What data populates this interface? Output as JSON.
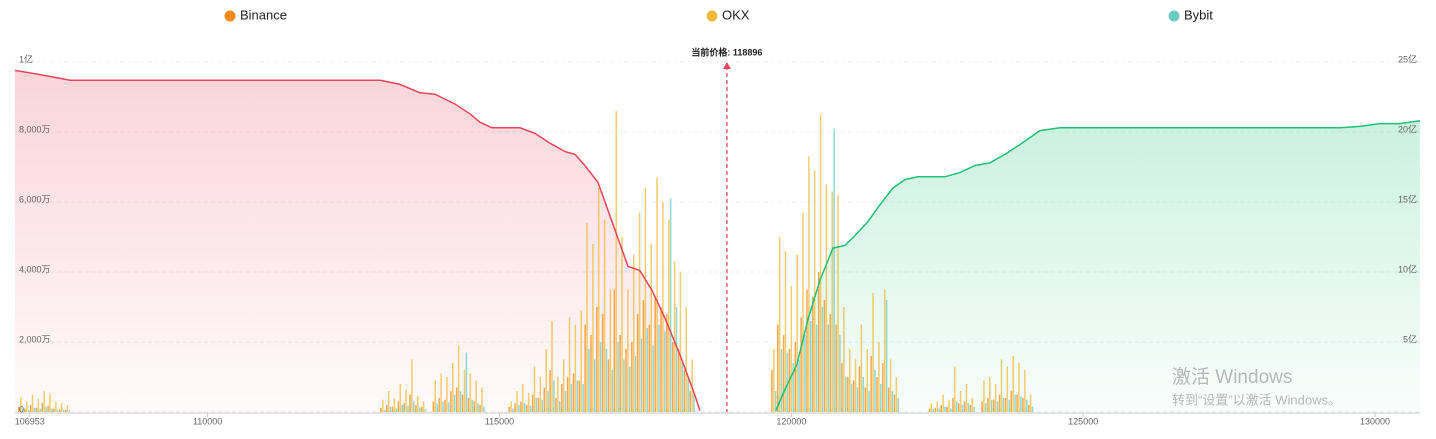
{
  "chart_data": {
    "type": "combo",
    "legend": "top",
    "grid": true,
    "xlim": [
      106700,
      130770
    ],
    "xticks": [
      106953,
      110000,
      115000,
      120000,
      125000,
      130000
    ],
    "ylim": [
      0,
      10000
    ],
    "yticks": [
      0,
      {
        "value": 2000,
        "label": "2,000万"
      },
      {
        "value": 4000,
        "label": "4,000万"
      },
      {
        "value": 6000,
        "label": "6,000万"
      },
      {
        "value": 8000,
        "label": "8,000万"
      },
      {
        "value": 10000,
        "label": "1亿"
      }
    ],
    "y2lim": [
      0,
      25
    ],
    "y2ticks": [
      {
        "value": 5,
        "label": "5亿"
      },
      {
        "value": 10,
        "label": "10亿"
      },
      {
        "value": 15,
        "label": "15亿"
      },
      {
        "value": 20,
        "label": "20亿"
      },
      {
        "value": 25,
        "label": "25亿"
      }
    ],
    "current_price": {
      "value": 118896,
      "label": "当前价格: 118896"
    },
    "x": [
      106800,
      106900,
      107000,
      107100,
      107200,
      107300,
      107400,
      107500,
      107600,
      113000,
      113100,
      113200,
      113300,
      113400,
      113500,
      113600,
      113700,
      113900,
      114000,
      114100,
      114200,
      114300,
      114400,
      114500,
      114600,
      114700,
      115200,
      115300,
      115400,
      115500,
      115600,
      115700,
      115800,
      115900,
      116000,
      116100,
      116200,
      116300,
      116400,
      116500,
      116600,
      116700,
      116800,
      116900,
      117000,
      117100,
      117200,
      117300,
      117400,
      117500,
      117600,
      117700,
      117800,
      117900,
      118000,
      118100,
      118200,
      118300,
      119700,
      119800,
      119900,
      120000,
      120100,
      120200,
      120300,
      120400,
      120500,
      120600,
      120700,
      120800,
      120900,
      121000,
      121100,
      121200,
      121300,
      121400,
      121500,
      121600,
      121700,
      121800,
      122400,
      122500,
      122600,
      122700,
      122800,
      122900,
      123000,
      123100,
      123300,
      123400,
      123500,
      123600,
      123700,
      123800,
      123900,
      124000,
      124100
    ],
    "series": [
      {
        "name": "Binance",
        "type": "bar",
        "color": "#f7890f",
        "values": [
          150,
          100,
          200,
          120,
          250,
          180,
          90,
          80,
          60,
          120,
          200,
          150,
          300,
          250,
          500,
          200,
          150,
          300,
          400,
          350,
          600,
          700,
          500,
          400,
          300,
          200,
          150,
          250,
          300,
          200,
          500,
          400,
          700,
          1200,
          400,
          800,
          1000,
          1100,
          900,
          2500,
          2200,
          3000,
          2800,
          1500,
          3500,
          2200,
          1800,
          2000,
          2800,
          3200,
          2500,
          3300,
          3000,
          2800,
          2000,
          1800,
          1200,
          600,
          1200,
          2500,
          2200,
          1800,
          2000,
          2700,
          3500,
          3300,
          4000,
          3200,
          2800,
          2500,
          1400,
          1000,
          900,
          1300,
          700,
          1600,
          1000,
          1400,
          700,
          500,
          100,
          120,
          200,
          150,
          400,
          250,
          300,
          200,
          300,
          400,
          350,
          500,
          400,
          600,
          500,
          400,
          200
        ]
      },
      {
        "name": "OKX",
        "type": "bar",
        "color": "#f0bb3a",
        "values": [
          420,
          300,
          500,
          380,
          600,
          520,
          300,
          260,
          200,
          350,
          600,
          400,
          800,
          650,
          1500,
          450,
          300,
          900,
          1100,
          1000,
          1400,
          1900,
          1200,
          1100,
          900,
          700,
          300,
          600,
          800,
          550,
          1300,
          1000,
          1800,
          2600,
          1000,
          1500,
          2700,
          2500,
          2900,
          5400,
          4800,
          6400,
          5500,
          3500,
          8600,
          5000,
          3500,
          4500,
          5700,
          6400,
          4800,
          6700,
          6000,
          5500,
          4300,
          4000,
          3000,
          1500,
          1800,
          5000,
          4600,
          3600,
          4500,
          5700,
          7300,
          6900,
          8500,
          6500,
          6300,
          6200,
          3000,
          1800,
          1500,
          2500,
          1800,
          3400,
          2000,
          3500,
          1500,
          1000,
          250,
          300,
          500,
          350,
          1300,
          600,
          800,
          400,
          900,
          1000,
          800,
          1500,
          1300,
          1600,
          1400,
          1200,
          500
        ]
      },
      {
        "name": "Bybit",
        "type": "bar",
        "color": "#6ccbc1",
        "values": [
          80,
          60,
          120,
          90,
          150,
          100,
          60,
          50,
          40,
          60,
          150,
          100,
          200,
          180,
          300,
          120,
          80,
          250,
          300,
          280,
          500,
          600,
          1700,
          350,
          250,
          150,
          100,
          200,
          250,
          180,
          400,
          350,
          600,
          900,
          300,
          600,
          800,
          900,
          800,
          1800,
          1500,
          2000,
          1800,
          1200,
          2000,
          1500,
          1300,
          1600,
          2100,
          2400,
          1900,
          2500,
          2300,
          6100,
          3000,
          1500,
          1000,
          500,
          600,
          1800,
          1700,
          1400,
          1500,
          2200,
          2600,
          2500,
          3000,
          2500,
          8100,
          2200,
          1000,
          800,
          700,
          1000,
          600,
          1200,
          800,
          3200,
          600,
          400,
          80,
          100,
          150,
          100,
          300,
          200,
          250,
          150,
          250,
          350,
          300,
          400,
          350,
          500,
          450,
          350,
          150
        ]
      },
      {
        "type": "area",
        "axis": "y2",
        "color": "#e84558",
        "x": [
          106700,
          107128,
          107385,
          107642,
          112952,
          113295,
          113466,
          113638,
          113895,
          114237,
          114494,
          114665,
          114871,
          115351,
          115608,
          115865,
          116122,
          116293,
          116464,
          116687,
          116927,
          117201,
          117406,
          117612,
          117835,
          118091,
          118348,
          118434
        ],
        "values": [
          24.4,
          24.1,
          23.9,
          23.7,
          23.7,
          23.4,
          23.1,
          22.8,
          22.7,
          22.0,
          21.3,
          20.7,
          20.3,
          20.3,
          19.9,
          19.2,
          18.6,
          18.4,
          17.6,
          16.4,
          13.6,
          10.4,
          10.1,
          8.7,
          6.7,
          4.1,
          1.2,
          0.1
        ]
      },
      {
        "type": "area",
        "axis": "y2",
        "color": "#1fbf75",
        "x": [
          119736,
          119890,
          120096,
          120284,
          120490,
          120712,
          120918,
          121089,
          121312,
          121483,
          121740,
          121946,
          122168,
          122631,
          122888,
          123145,
          123402,
          123659,
          123916,
          124258,
          124601,
          129397,
          129740,
          130082,
          130425,
          130768
        ],
        "values": [
          0.1,
          1.6,
          3.4,
          6.6,
          9.4,
          11.7,
          11.9,
          12.6,
          13.6,
          14.6,
          16.0,
          16.6,
          16.8,
          16.8,
          17.1,
          17.6,
          17.8,
          18.4,
          19.1,
          20.1,
          20.3,
          20.3,
          20.4,
          20.6,
          20.6,
          20.8
        ]
      }
    ]
  },
  "watermark": {
    "title": "激活 Windows",
    "subtitle": "转到“设置”以激活 Windows。"
  }
}
